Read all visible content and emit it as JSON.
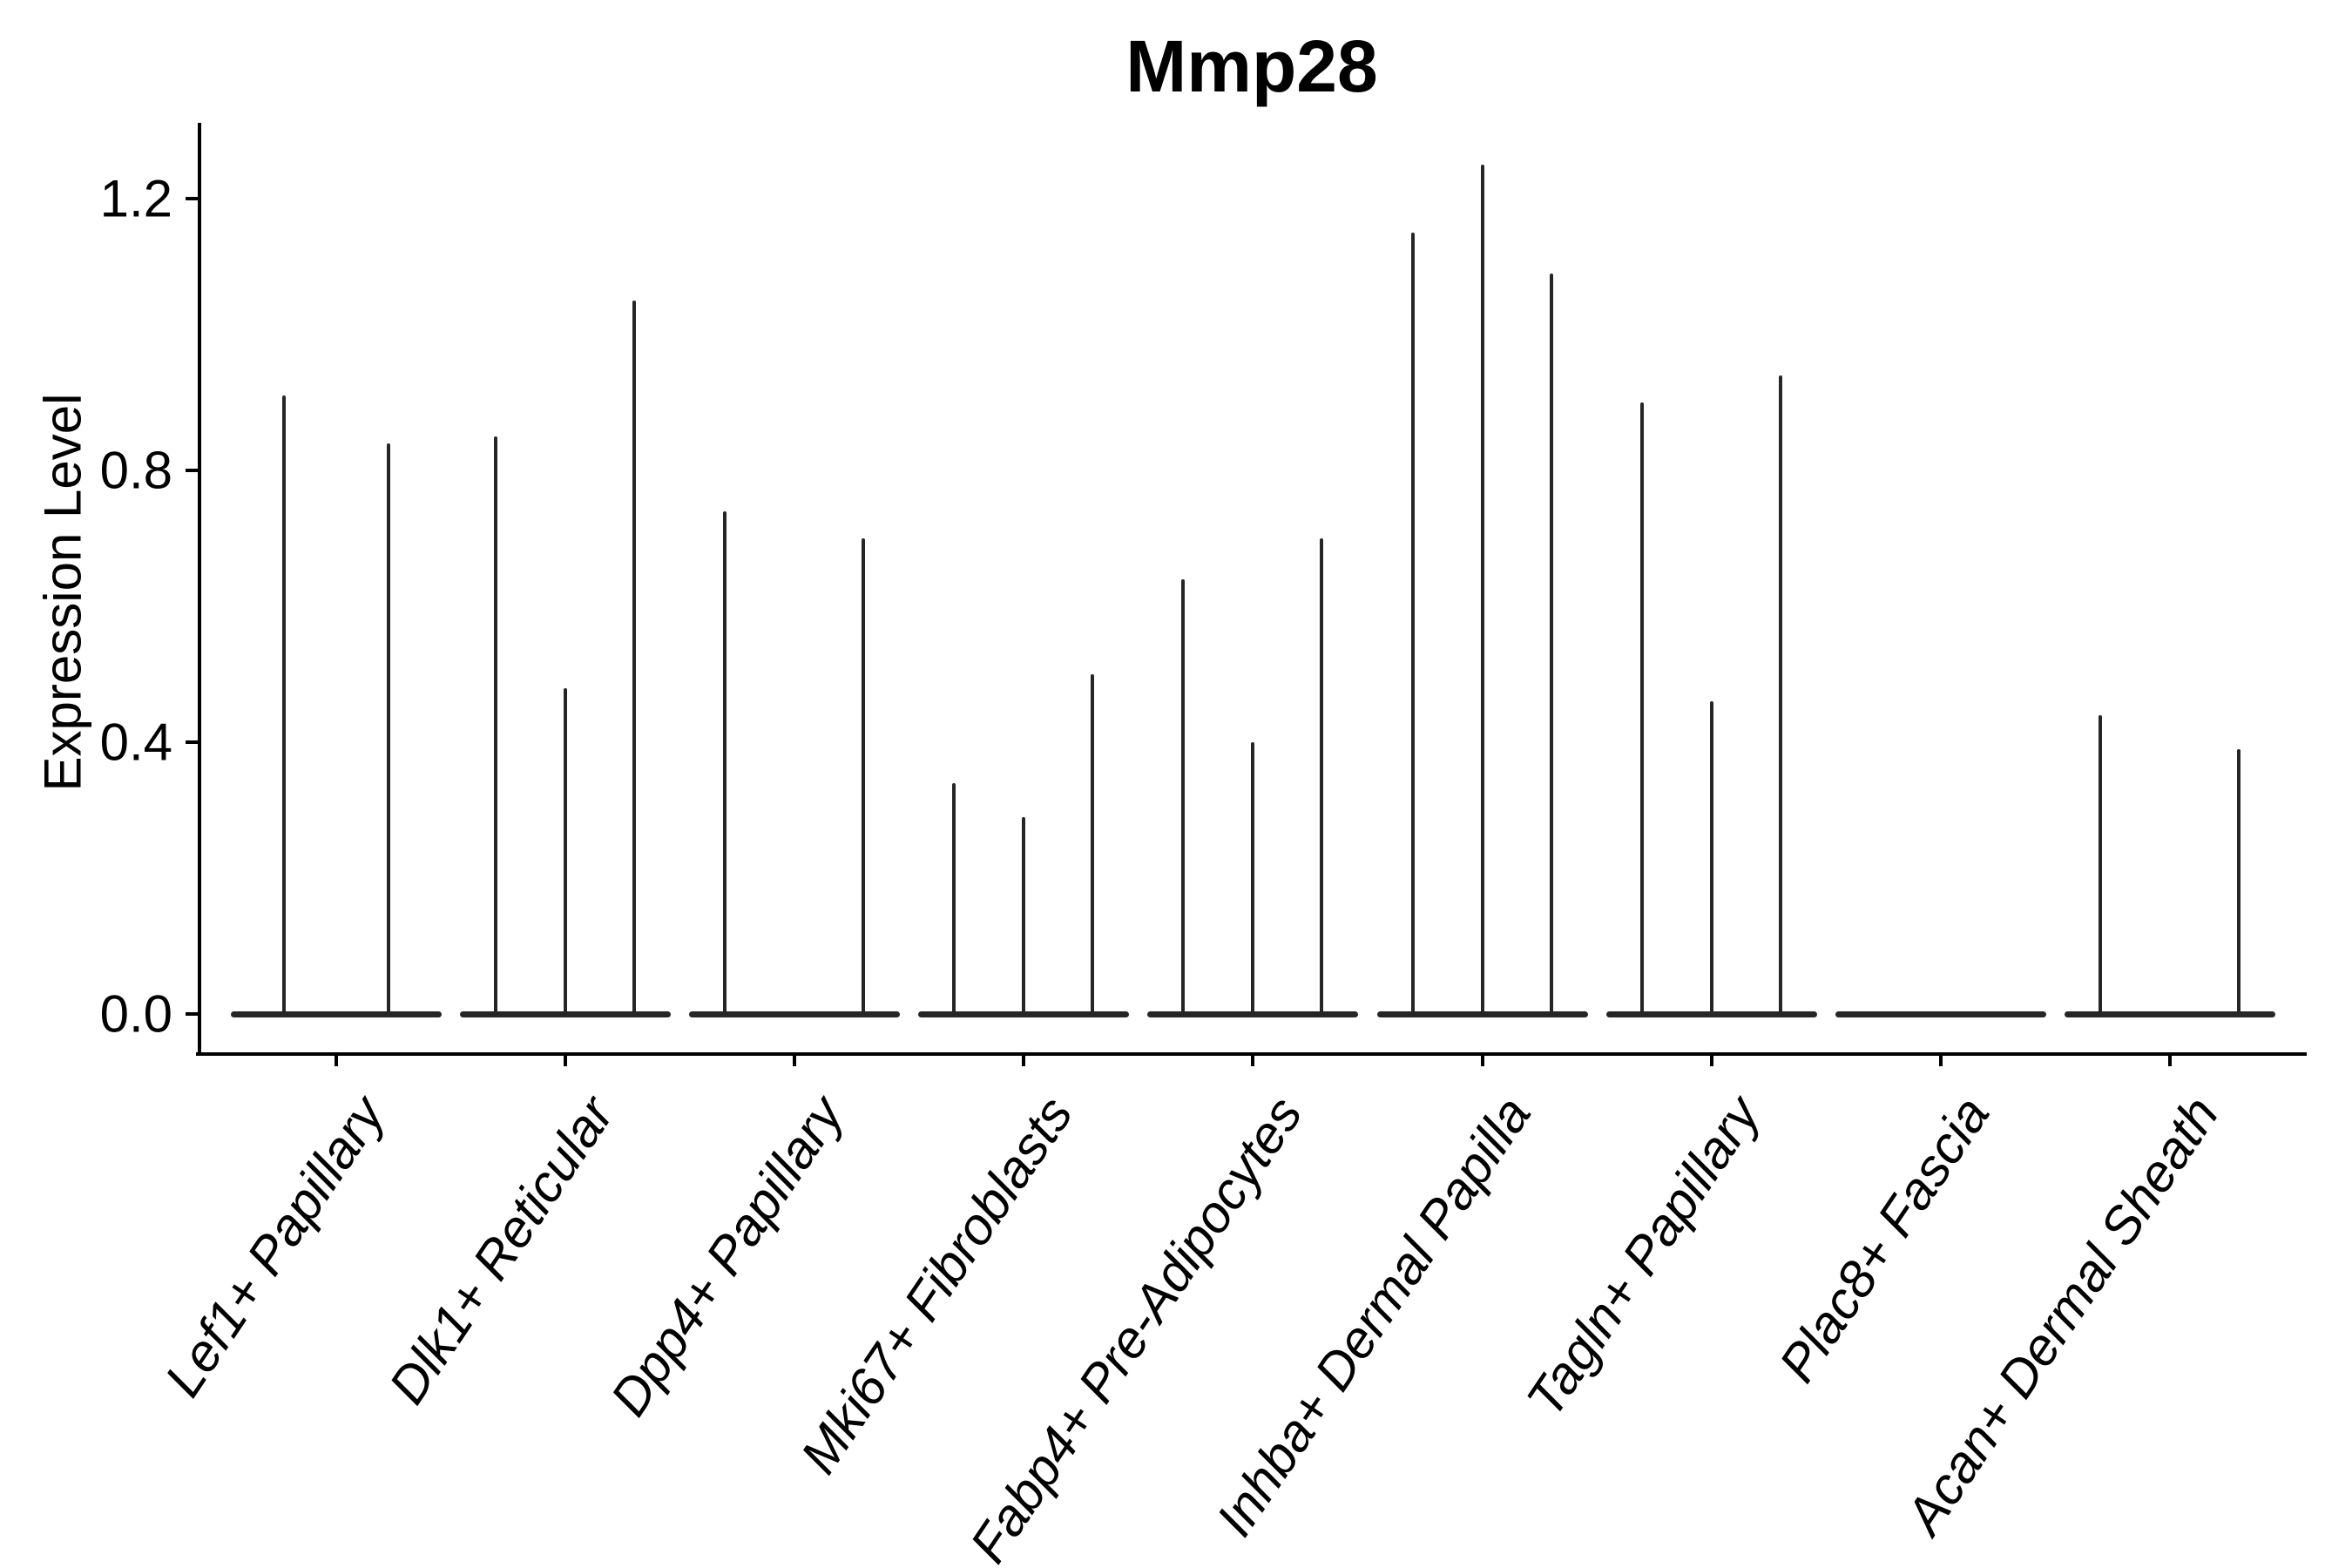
{
  "chart_data": {
    "type": "violin",
    "title": "Mmp28",
    "ylabel": "Expression Level",
    "xlabel": "",
    "grid": false,
    "legend": "none",
    "ylim": [
      -0.06,
      1.31
    ],
    "yticks": [
      0.0,
      0.4,
      0.8,
      1.2
    ],
    "ytick_labels": [
      "0.0",
      "0.4",
      "0.8",
      "1.2"
    ],
    "categories": [
      "Lef1+ Papillary",
      "Dlk1+ Reticular",
      "Dpp4+ Papillary",
      "Mki67+ Fibroblasts",
      "Fabp4+ Pre-Adipocytes",
      "Inhba+ Dermal Papilla",
      "Tagln+ Papillary",
      "Plac8+ Fascia",
      "Acan+ Dermal Sheath"
    ],
    "series": [
      {
        "category": "Lef1+ Papillary",
        "violins": [
          {
            "offset": -60,
            "max": 0.91
          },
          {
            "offset": 60,
            "max": 0.84
          }
        ]
      },
      {
        "category": "Dlk1+ Reticular",
        "violins": [
          {
            "offset": -80,
            "max": 0.85
          },
          {
            "offset": 0,
            "max": 0.48
          },
          {
            "offset": 79,
            "max": 1.05
          }
        ]
      },
      {
        "category": "Dpp4+ Papillary",
        "violins": [
          {
            "offset": -80,
            "max": 0.74
          },
          {
            "offset": 79,
            "max": 0.7
          }
        ]
      },
      {
        "category": "Mki67+ Fibroblasts",
        "violins": [
          {
            "offset": -80,
            "max": 0.34
          },
          {
            "offset": 0,
            "max": 0.29
          },
          {
            "offset": 79,
            "max": 0.5
          }
        ]
      },
      {
        "category": "Fabp4+ Pre-Adipocytes",
        "violins": [
          {
            "offset": -80,
            "max": 0.64
          },
          {
            "offset": 0,
            "max": 0.4
          },
          {
            "offset": 79,
            "max": 0.7
          }
        ]
      },
      {
        "category": "Inhba+ Dermal Papilla",
        "violins": [
          {
            "offset": -80,
            "max": 1.15
          },
          {
            "offset": 0,
            "max": 1.25
          },
          {
            "offset": 79,
            "max": 1.09
          }
        ]
      },
      {
        "category": "Tagln+ Papillary",
        "violins": [
          {
            "offset": -80,
            "max": 0.9
          },
          {
            "offset": 0,
            "max": 0.46
          },
          {
            "offset": 79,
            "max": 0.94
          }
        ]
      },
      {
        "category": "Plac8+ Fascia",
        "violins": []
      },
      {
        "category": "Acan+ Dermal Sheath",
        "violins": [
          {
            "offset": -80,
            "max": 0.44
          },
          {
            "offset": 79,
            "max": 0.39
          }
        ]
      }
    ],
    "violin_color": "#262626",
    "axis_color": "#000000",
    "background_color": "#ffffff"
  }
}
